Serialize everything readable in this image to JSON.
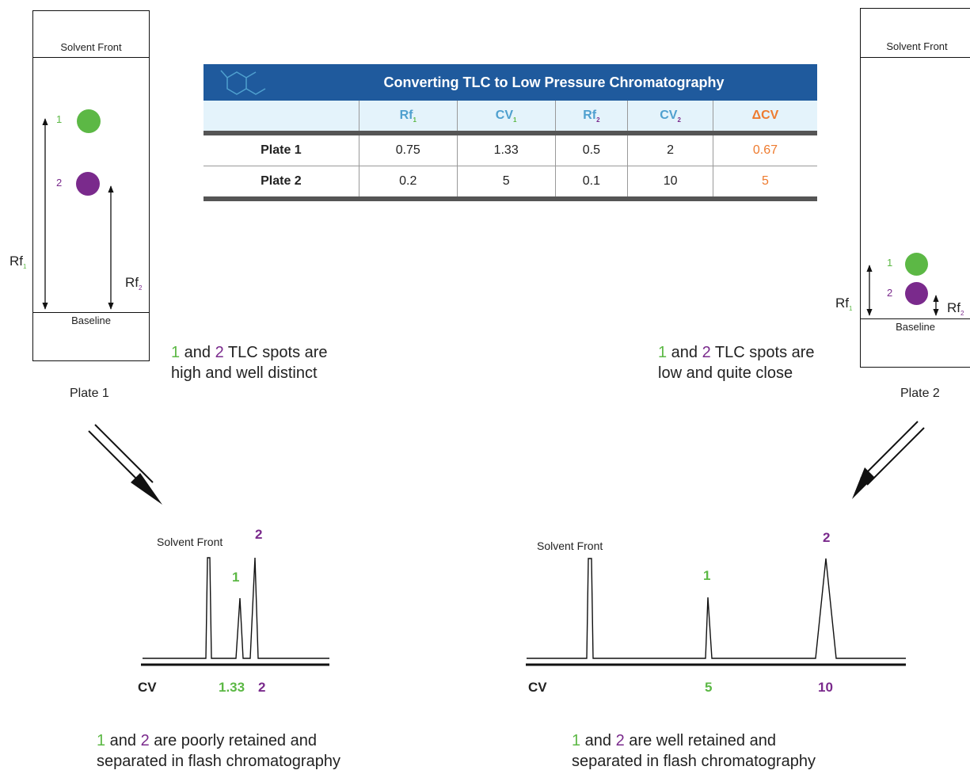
{
  "table": {
    "title": "Converting TLC to Low Pressure Chromatography",
    "headers": [
      {
        "base": "Rf",
        "sub": "1"
      },
      {
        "base": "CV",
        "sub": "1"
      },
      {
        "base": "Rf",
        "sub": "2"
      },
      {
        "base": "CV",
        "sub": "2"
      },
      {
        "base": "ΔCV",
        "sub": ""
      }
    ],
    "rows": [
      {
        "label": "Plate 1",
        "rf1": "0.75",
        "cv1": "1.33",
        "rf2": "0.5",
        "cv2": "2",
        "dcv": "0.67"
      },
      {
        "label": "Plate 2",
        "rf1": "0.2",
        "cv1": "5",
        "rf2": "0.1",
        "cv2": "10",
        "dcv": "5"
      }
    ]
  },
  "plate1": {
    "solvent_front": "Solvent Front",
    "baseline": "Baseline",
    "name": "Plate 1",
    "spot1": "1",
    "spot2": "2",
    "rf_base": "Rf",
    "rf1_sub": "1",
    "rf2_sub": "2",
    "caption": {
      "n1": "1",
      "and": " and ",
      "n2": "2",
      "line1_rest": " TLC spots are",
      "line2": "high and well distinct"
    }
  },
  "plate2": {
    "solvent_front": "Solvent Front",
    "baseline": "Baseline",
    "name": "Plate 2",
    "spot1": "1",
    "spot2": "2",
    "rf_base": "Rf",
    "rf1_sub": "1",
    "rf2_sub": "2",
    "caption": {
      "n1": "1",
      "and": " and ",
      "n2": "2",
      "line1_rest": " TLC spots are",
      "line2": "low and quite close"
    }
  },
  "chrom1": {
    "solvent_front": "Solvent Front",
    "peak1": "1",
    "peak2": "2",
    "axis": "CV",
    "cv1": "1.33",
    "cv2": "2",
    "caption": {
      "n1": "1",
      "and": " and ",
      "n2": "2",
      "line1_rest": " are poorly retained and",
      "line2": "separated in flash chromatography"
    }
  },
  "chrom2": {
    "solvent_front": "Solvent Front",
    "peak1": "1",
    "peak2": "2",
    "axis": "CV",
    "cv1": "5",
    "cv2": "10",
    "caption": {
      "n1": "1",
      "and": " and ",
      "n2": "2",
      "line1_rest": " are well retained and",
      "line2": "separated in flash chromatography"
    }
  },
  "colors": {
    "green": "#5cb845",
    "purple": "#7a2a8c",
    "orange": "#ee7b2f",
    "blue_header": "#1f5a9d",
    "light_blue": "#4fa0cf"
  }
}
